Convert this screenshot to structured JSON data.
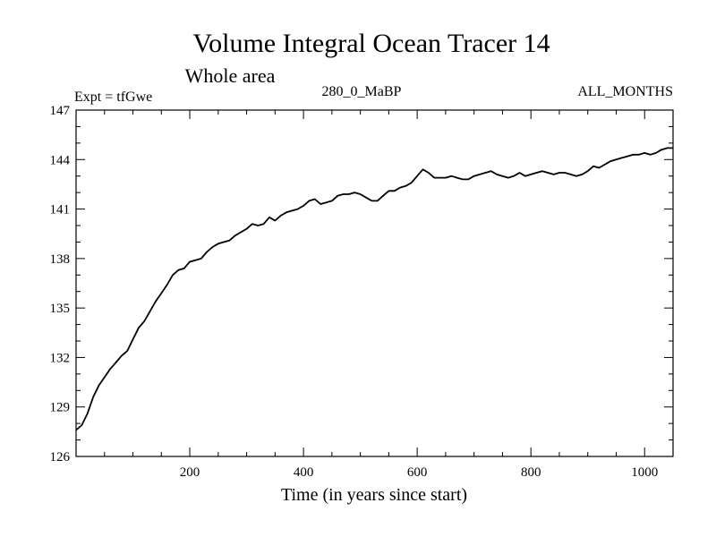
{
  "chart_data": {
    "type": "line",
    "title": "Volume Integral Ocean Tracer 14",
    "subtitle": "Whole area",
    "header_left": "Expt = tfGwe",
    "header_center": "280_0_MaBP",
    "header_right": "ALL_MONTHS",
    "xlabel": "Time (in years since start)",
    "ylabel": "",
    "xlim": [
      0,
      1050
    ],
    "ylim": [
      126,
      147
    ],
    "xticks": [
      200,
      400,
      600,
      800,
      1000
    ],
    "yticks": [
      126,
      129,
      132,
      135,
      138,
      141,
      144,
      147
    ],
    "grid": false,
    "series": [
      {
        "color": "#000000",
        "x": [
          0,
          10,
          20,
          30,
          40,
          50,
          60,
          70,
          80,
          90,
          100,
          110,
          120,
          130,
          140,
          150,
          160,
          170,
          180,
          190,
          200,
          210,
          220,
          230,
          240,
          250,
          260,
          270,
          280,
          290,
          300,
          310,
          320,
          330,
          340,
          350,
          360,
          370,
          380,
          390,
          400,
          410,
          420,
          430,
          440,
          450,
          460,
          470,
          480,
          490,
          500,
          510,
          520,
          530,
          540,
          550,
          560,
          570,
          580,
          590,
          600,
          610,
          620,
          630,
          640,
          650,
          660,
          670,
          680,
          690,
          700,
          710,
          720,
          730,
          740,
          750,
          760,
          770,
          780,
          790,
          800,
          810,
          820,
          830,
          840,
          850,
          860,
          870,
          880,
          890,
          900,
          910,
          920,
          930,
          940,
          950,
          960,
          970,
          980,
          990,
          1000,
          1010,
          1020,
          1030,
          1040,
          1050
        ],
        "y": [
          127.6,
          127.9,
          128.6,
          129.6,
          130.3,
          130.8,
          131.3,
          131.7,
          132.1,
          132.4,
          133.1,
          133.8,
          134.2,
          134.8,
          135.4,
          135.9,
          136.4,
          137.0,
          137.3,
          137.4,
          137.8,
          137.9,
          138.0,
          138.4,
          138.7,
          138.9,
          139.0,
          139.1,
          139.4,
          139.6,
          139.8,
          140.1,
          140.0,
          140.1,
          140.5,
          140.3,
          140.6,
          140.8,
          140.9,
          141.0,
          141.2,
          141.5,
          141.6,
          141.3,
          141.4,
          141.5,
          141.8,
          141.9,
          141.9,
          142.0,
          141.9,
          141.7,
          141.5,
          141.5,
          141.8,
          142.1,
          142.1,
          142.3,
          142.4,
          142.6,
          143.0,
          143.4,
          143.2,
          142.9,
          142.9,
          142.9,
          143.0,
          142.9,
          142.8,
          142.8,
          143.0,
          143.1,
          143.2,
          143.3,
          143.1,
          143.0,
          142.9,
          143.0,
          143.2,
          143.0,
          143.1,
          143.2,
          143.3,
          143.2,
          143.1,
          143.2,
          143.2,
          143.1,
          143.0,
          143.1,
          143.3,
          143.6,
          143.5,
          143.7,
          143.9,
          144.0,
          144.1,
          144.2,
          144.3,
          144.3,
          144.4,
          144.3,
          144.4,
          144.6,
          144.7,
          144.7
        ]
      }
    ]
  }
}
